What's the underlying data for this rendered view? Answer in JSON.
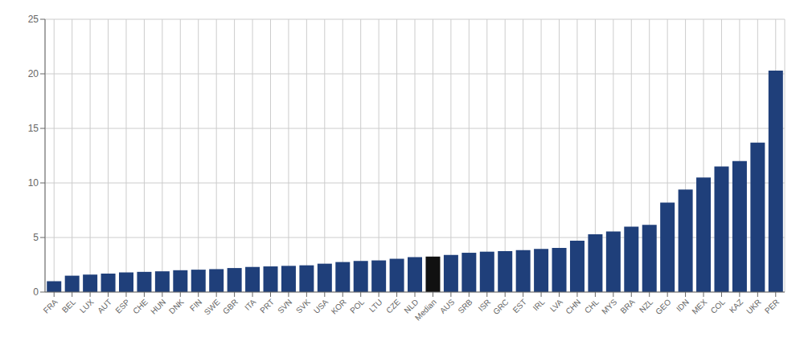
{
  "chart_data": {
    "type": "bar",
    "categories": [
      "FRA",
      "BEL",
      "LUX",
      "AUT",
      "ESP",
      "CHE",
      "HUN",
      "DNK",
      "FIN",
      "SWE",
      "GBR",
      "ITA",
      "PRT",
      "SVN",
      "SVK",
      "USA",
      "KOR",
      "POL",
      "LTU",
      "CZE",
      "NLD",
      "Median",
      "AUS",
      "SRB",
      "ISR",
      "GRC",
      "EST",
      "IRL",
      "LVA",
      "CHN",
      "CHL",
      "MYS",
      "BRA",
      "NZL",
      "GEO",
      "IDN",
      "MEX",
      "COL",
      "KAZ",
      "UKR",
      "PER"
    ],
    "values": [
      1.0,
      1.5,
      1.6,
      1.7,
      1.8,
      1.85,
      1.9,
      2.0,
      2.05,
      2.1,
      2.2,
      2.3,
      2.35,
      2.4,
      2.45,
      2.6,
      2.75,
      2.85,
      2.9,
      3.05,
      3.2,
      3.25,
      3.4,
      3.6,
      3.7,
      3.75,
      3.85,
      3.95,
      4.05,
      4.7,
      5.3,
      5.55,
      6.0,
      6.15,
      8.2,
      9.4,
      10.5,
      11.5,
      12.0,
      13.7,
      20.3
    ],
    "colors": [
      "#1F3F7A",
      "#1F3F7A",
      "#1F3F7A",
      "#1F3F7A",
      "#1F3F7A",
      "#1F3F7A",
      "#1F3F7A",
      "#1F3F7A",
      "#1F3F7A",
      "#1F3F7A",
      "#1F3F7A",
      "#1F3F7A",
      "#1F3F7A",
      "#1F3F7A",
      "#1F3F7A",
      "#1F3F7A",
      "#1F3F7A",
      "#1F3F7A",
      "#1F3F7A",
      "#1F3F7A",
      "#1F3F7A",
      "#111111",
      "#1F3F7A",
      "#1F3F7A",
      "#1F3F7A",
      "#1F3F7A",
      "#1F3F7A",
      "#1F3F7A",
      "#1F3F7A",
      "#1F3F7A",
      "#1F3F7A",
      "#1F3F7A",
      "#1F3F7A",
      "#1F3F7A",
      "#1F3F7A",
      "#1F3F7A",
      "#1F3F7A",
      "#1F3F7A",
      "#1F3F7A",
      "#1F3F7A",
      "#1F3F7A"
    ],
    "ylim": [
      0,
      25
    ],
    "yticks": [
      0,
      5,
      10,
      15,
      20,
      25
    ],
    "grid": true
  }
}
